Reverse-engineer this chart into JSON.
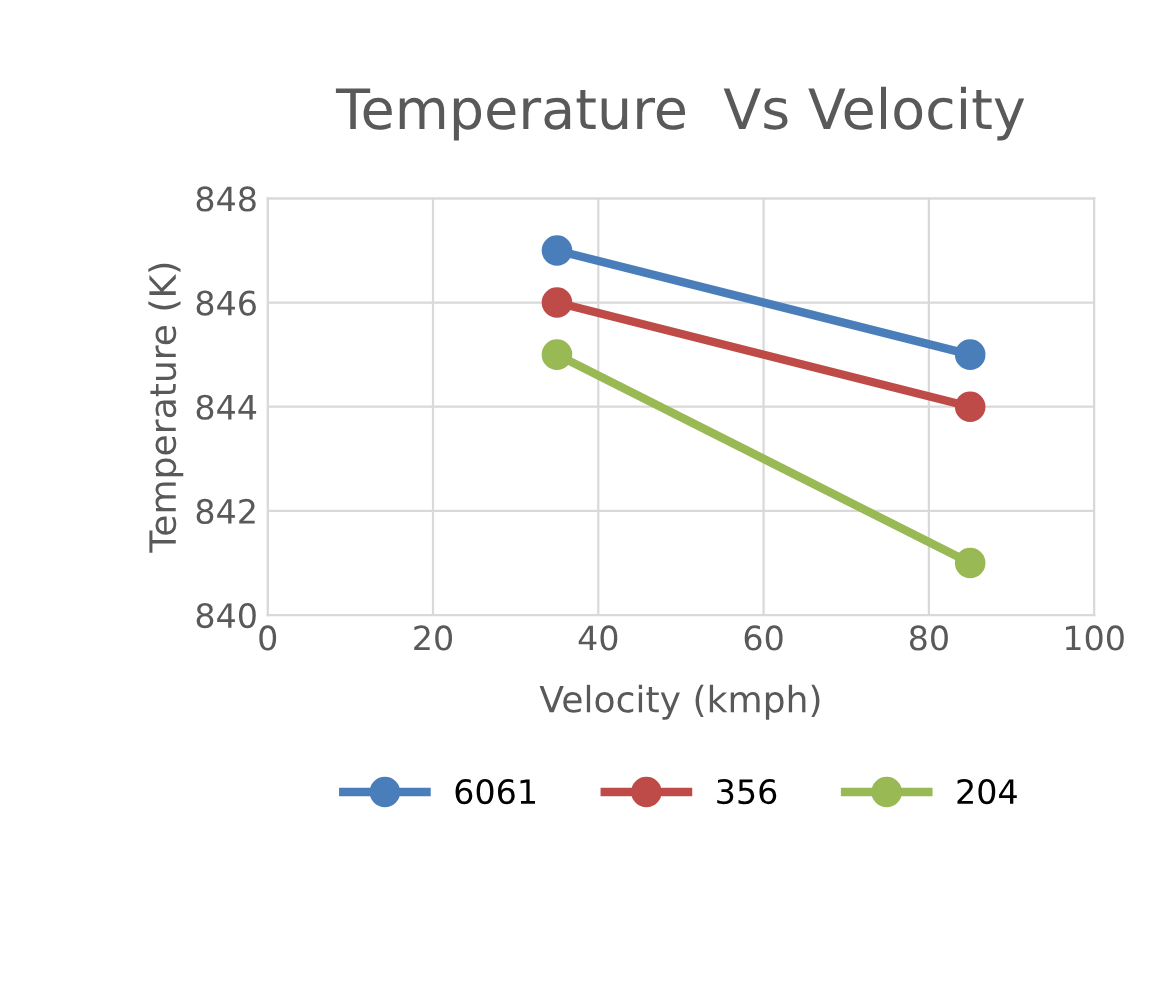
{
  "chart_data": {
    "type": "line",
    "title": "Temperature  Vs Velocity",
    "xlabel": "Velocity (kmph)",
    "ylabel": "Temperature (K)",
    "x": [
      35,
      85
    ],
    "series": [
      {
        "name": "6061",
        "color": "#4a7ebb",
        "values": [
          847,
          845
        ]
      },
      {
        "name": "356",
        "color": "#be4b48",
        "values": [
          846,
          844
        ]
      },
      {
        "name": "204",
        "color": "#98b954",
        "values": [
          845,
          841
        ]
      }
    ],
    "xlim": [
      0,
      100
    ],
    "xticks": [
      0,
      20,
      40,
      60,
      80,
      100
    ],
    "ylim": [
      840,
      848
    ],
    "yticks": [
      840,
      842,
      844,
      846,
      848
    ],
    "grid": true,
    "legend": "bottom",
    "marker": "circle",
    "line_style": "solid"
  }
}
